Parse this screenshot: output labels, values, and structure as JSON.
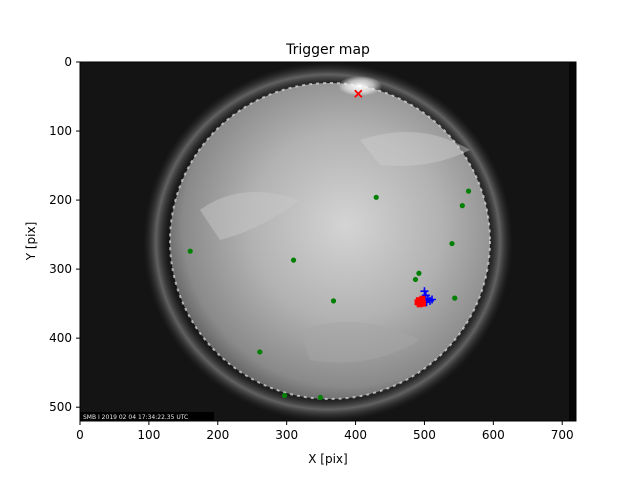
{
  "chart_data": {
    "type": "scatter",
    "title": "Trigger map",
    "xlabel": "X [pix]",
    "ylabel": "Y [pix]",
    "xlim": [
      0,
      720
    ],
    "ylim": [
      520,
      0
    ],
    "x_ticks": [
      0,
      100,
      200,
      300,
      400,
      500,
      600,
      700
    ],
    "y_ticks": [
      0,
      100,
      200,
      300,
      400,
      500
    ],
    "grid": false,
    "background_image": "fisheye all-sky camera frame (grayscale)",
    "image_timestamp_text": "SMB I 2019 02 04 17:34:22.35 UTC",
    "series": [
      {
        "marker": "circle",
        "color": "#008000",
        "points": [
          {
            "x": 430,
            "y": 196
          },
          {
            "x": 564,
            "y": 187
          },
          {
            "x": 555,
            "y": 208
          },
          {
            "x": 540,
            "y": 263
          },
          {
            "x": 160,
            "y": 274
          },
          {
            "x": 310,
            "y": 287
          },
          {
            "x": 492,
            "y": 306
          },
          {
            "x": 487,
            "y": 315
          },
          {
            "x": 368,
            "y": 346
          },
          {
            "x": 544,
            "y": 342
          },
          {
            "x": 261,
            "y": 420
          },
          {
            "x": 297,
            "y": 483
          },
          {
            "x": 349,
            "y": 486
          }
        ]
      },
      {
        "marker": "plus",
        "color": "#0000ff",
        "points": [
          {
            "x": 500,
            "y": 332
          },
          {
            "x": 502,
            "y": 338
          },
          {
            "x": 505,
            "y": 343
          },
          {
            "x": 508,
            "y": 346
          },
          {
            "x": 503,
            "y": 348
          },
          {
            "x": 511,
            "y": 344
          },
          {
            "x": 500,
            "y": 345
          }
        ]
      },
      {
        "marker": "square",
        "color": "#ff0000",
        "points": [
          {
            "x": 492,
            "y": 345
          },
          {
            "x": 495,
            "y": 348
          },
          {
            "x": 497,
            "y": 343
          },
          {
            "x": 493,
            "y": 351
          },
          {
            "x": 498,
            "y": 350
          },
          {
            "x": 490,
            "y": 348
          }
        ]
      },
      {
        "marker": "x",
        "color": "#ff0000",
        "points": [
          {
            "x": 404,
            "y": 46
          }
        ]
      }
    ]
  }
}
